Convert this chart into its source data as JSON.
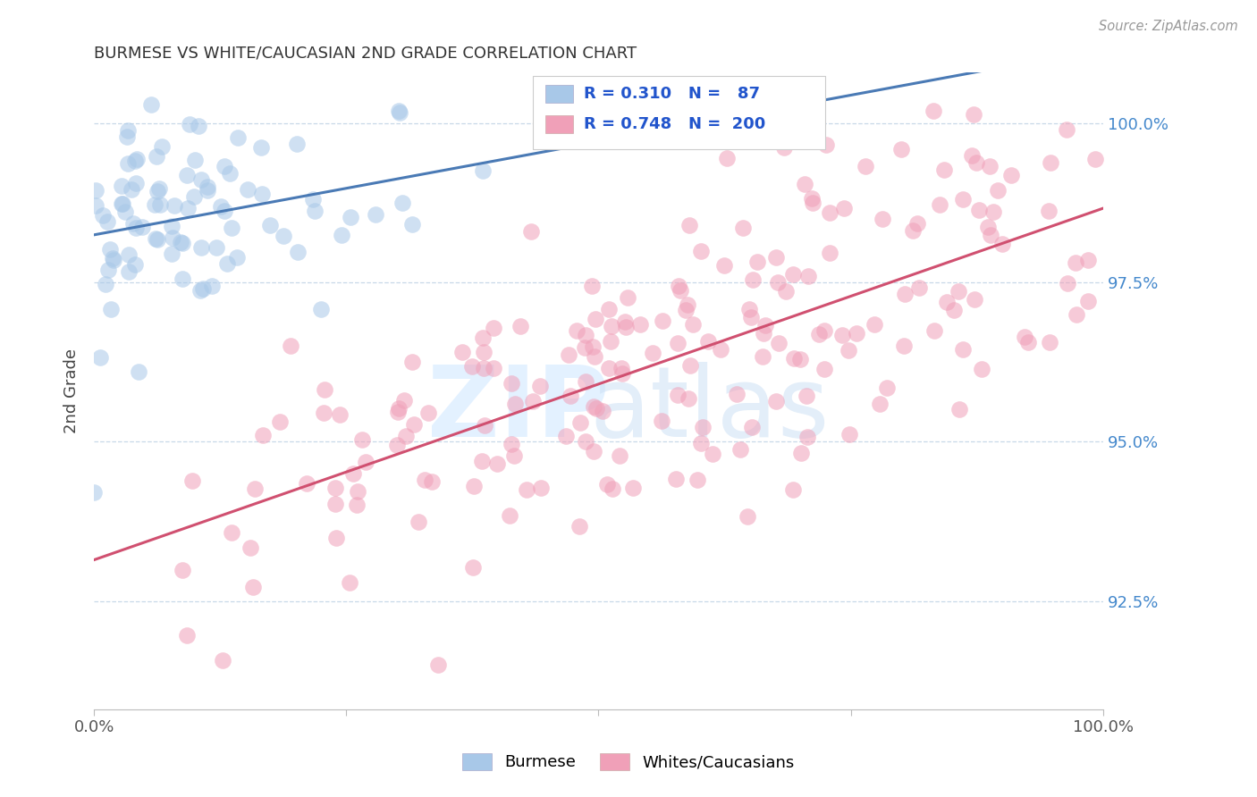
{
  "title": "BURMESE VS WHITE/CAUCASIAN 2ND GRADE CORRELATION CHART",
  "source": "Source: ZipAtlas.com",
  "ylabel": "2nd Grade",
  "blue_R": 0.31,
  "blue_N": 87,
  "pink_R": 0.748,
  "pink_N": 200,
  "blue_color": "#a8c8e8",
  "pink_color": "#f0a0b8",
  "blue_line_color": "#4a7ab5",
  "pink_line_color": "#d05070",
  "right_axis_color": "#4488cc",
  "legend_text_color": "#2255cc",
  "title_color": "#333333",
  "background_color": "#ffffff",
  "grid_color": "#c8d8e8",
  "xlim": [
    0.0,
    1.0
  ],
  "ylim": [
    0.908,
    1.008
  ],
  "yticks": [
    0.925,
    0.95,
    0.975,
    1.0
  ],
  "ytick_labels": [
    "92.5%",
    "95.0%",
    "97.5%",
    "100.0%"
  ]
}
